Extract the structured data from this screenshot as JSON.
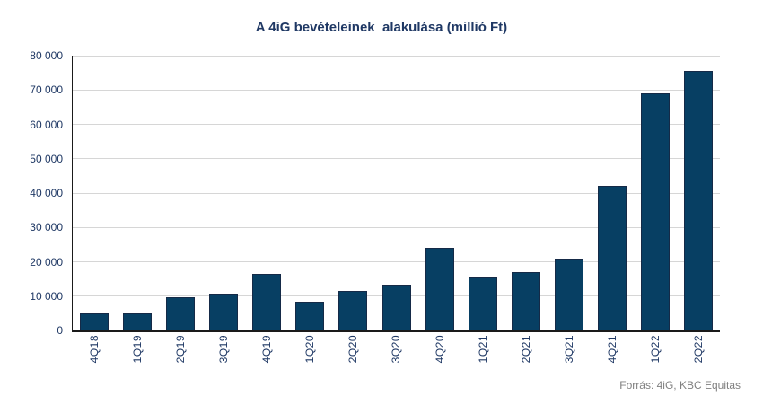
{
  "title": "A 4iG bevételeinek  alakulása (millió Ft)",
  "source_note": "Forrás: 4iG, KBC Equitas",
  "colors": {
    "bar_fill": "#073F63",
    "bar_border": "#152A47",
    "grid_line": "#D6D6D6",
    "axis_line": "#1A1A1A",
    "title_text": "#1F3864",
    "tick_text": "#1F3864",
    "source_text": "#808080",
    "background": "#FFFFFF"
  },
  "chart_data": {
    "type": "bar",
    "title": "A 4iG bevételeinek  alakulása (millió Ft)",
    "categories": [
      "4Q18",
      "1Q19",
      "2Q19",
      "3Q19",
      "4Q19",
      "1Q20",
      "2Q20",
      "3Q20",
      "4Q20",
      "1Q21",
      "2Q21",
      "3Q21",
      "4Q21",
      "1Q22",
      "2Q22"
    ],
    "values": [
      4900,
      5000,
      9800,
      10600,
      16400,
      8400,
      11500,
      13400,
      24000,
      15300,
      17000,
      21000,
      42000,
      69000,
      75500
    ],
    "xlabel": "",
    "ylabel": "",
    "ylim": [
      0,
      80000
    ],
    "ytick_interval": 10000,
    "ytick_labels": [
      "0",
      "10 000",
      "20 000",
      "30 000",
      "40 000",
      "50 000",
      "60 000",
      "70 000",
      "80 000"
    ],
    "grid": "horizontal",
    "legend": "none",
    "x_tick_rotation": 90,
    "source": "Forrás: 4iG, KBC Equitas"
  }
}
